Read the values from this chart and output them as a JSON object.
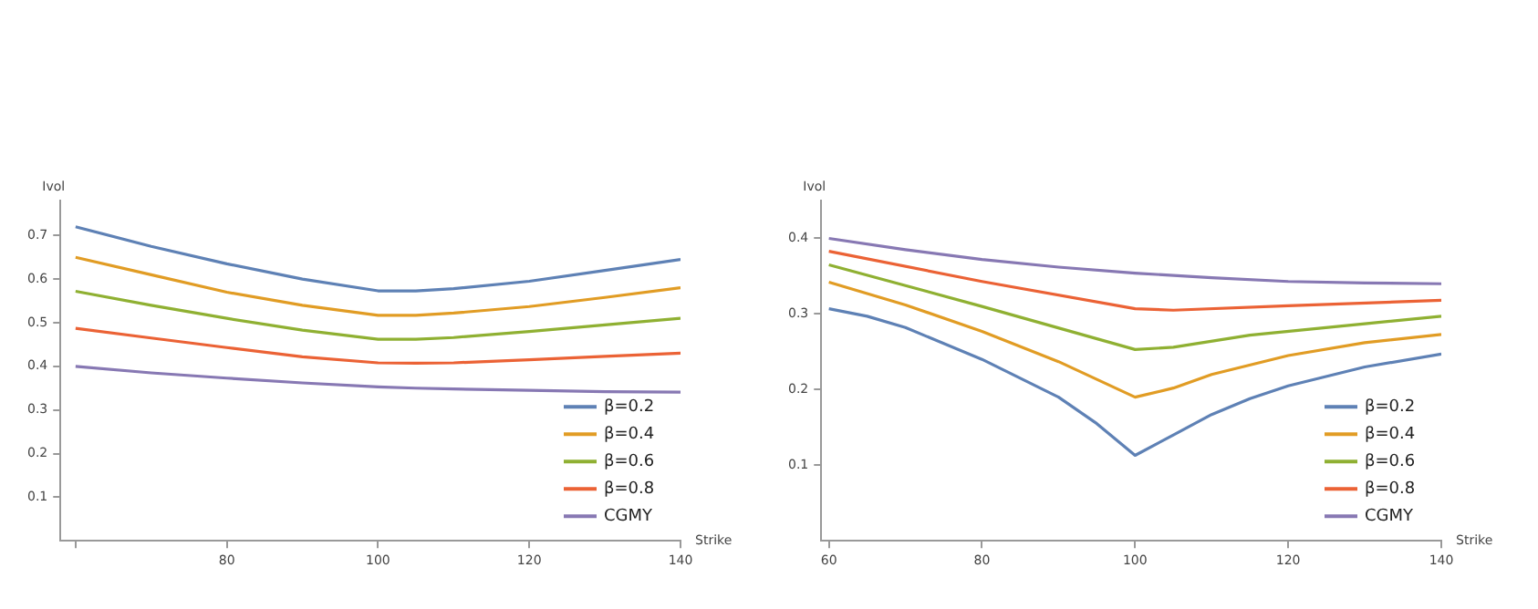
{
  "chart_data": [
    {
      "type": "line",
      "xlabel": "Strike",
      "ylabel": "Ivol",
      "x": [
        60,
        70,
        80,
        90,
        100,
        105,
        110,
        120,
        130,
        140
      ],
      "xlim": [
        58,
        140
      ],
      "xticks": [
        {
          "value": 60,
          "label": null
        },
        80,
        100,
        120,
        140
      ],
      "ylim": [
        0,
        0.78
      ],
      "yticks": [
        0.1,
        0.2,
        0.3,
        0.4,
        0.5,
        0.6,
        0.7
      ],
      "grid": false,
      "legend": "bottom right",
      "marker": "none",
      "line_style": "solid",
      "series": [
        {
          "name": "β=0.2",
          "color": "#5e81b5",
          "values": [
            0.72,
            0.675,
            0.635,
            0.6,
            0.573,
            0.573,
            0.578,
            0.595,
            0.62,
            0.645
          ]
        },
        {
          "name": "β=0.4",
          "color": "#e19c24",
          "values": [
            0.65,
            0.61,
            0.57,
            0.54,
            0.517,
            0.517,
            0.522,
            0.537,
            0.558,
            0.58
          ]
        },
        {
          "name": "β=0.6",
          "color": "#8fb032",
          "values": [
            0.572,
            0.54,
            0.51,
            0.483,
            0.462,
            0.462,
            0.466,
            0.48,
            0.495,
            0.51
          ]
        },
        {
          "name": "β=0.8",
          "color": "#eb6235",
          "values": [
            0.487,
            0.465,
            0.443,
            0.422,
            0.408,
            0.407,
            0.408,
            0.415,
            0.423,
            0.43
          ]
        },
        {
          "name": "CGMY",
          "color": "#8778b3",
          "values": [
            0.4,
            0.385,
            0.373,
            0.362,
            0.353,
            0.35,
            0.348,
            0.345,
            0.342,
            0.341
          ]
        }
      ]
    },
    {
      "type": "line",
      "xlabel": "Strike",
      "ylabel": "Ivol",
      "xlim": [
        59,
        140
      ],
      "xticks": [
        60,
        80,
        100,
        120,
        140
      ],
      "ylim": [
        0,
        0.45
      ],
      "yticks": [
        0.1,
        0.2,
        0.3,
        0.4
      ],
      "grid": false,
      "legend": "bottom right",
      "marker": "none",
      "line_style": "solid",
      "series": [
        {
          "name": "β=0.2",
          "color": "#5e81b5",
          "x": [
            60,
            65,
            70,
            80,
            90,
            95,
            100,
            105,
            110,
            115,
            120,
            130,
            140
          ],
          "values": [
            0.307,
            0.297,
            0.282,
            0.24,
            0.19,
            0.155,
            0.113,
            0.14,
            0.167,
            0.188,
            0.205,
            0.23,
            0.247
          ]
        },
        {
          "name": "β=0.4",
          "color": "#e19c24",
          "x": [
            60,
            70,
            80,
            90,
            100,
            105,
            110,
            120,
            130,
            140
          ],
          "values": [
            0.342,
            0.312,
            0.277,
            0.237,
            0.19,
            0.202,
            0.22,
            0.245,
            0.262,
            0.273
          ]
        },
        {
          "name": "β=0.6",
          "color": "#8fb032",
          "x": [
            60,
            80,
            100,
            105,
            115,
            130,
            140
          ],
          "values": [
            0.365,
            0.31,
            0.253,
            0.256,
            0.272,
            0.287,
            0.297
          ]
        },
        {
          "name": "β=0.8",
          "color": "#eb6235",
          "x": [
            60,
            80,
            100,
            105,
            120,
            140
          ],
          "values": [
            0.383,
            0.343,
            0.307,
            0.305,
            0.311,
            0.318
          ]
        },
        {
          "name": "CGMY",
          "color": "#8778b3",
          "x": [
            60,
            70,
            80,
            90,
            100,
            110,
            120,
            130,
            140
          ],
          "values": [
            0.4,
            0.385,
            0.372,
            0.362,
            0.354,
            0.348,
            0.343,
            0.341,
            0.34
          ]
        }
      ]
    }
  ]
}
